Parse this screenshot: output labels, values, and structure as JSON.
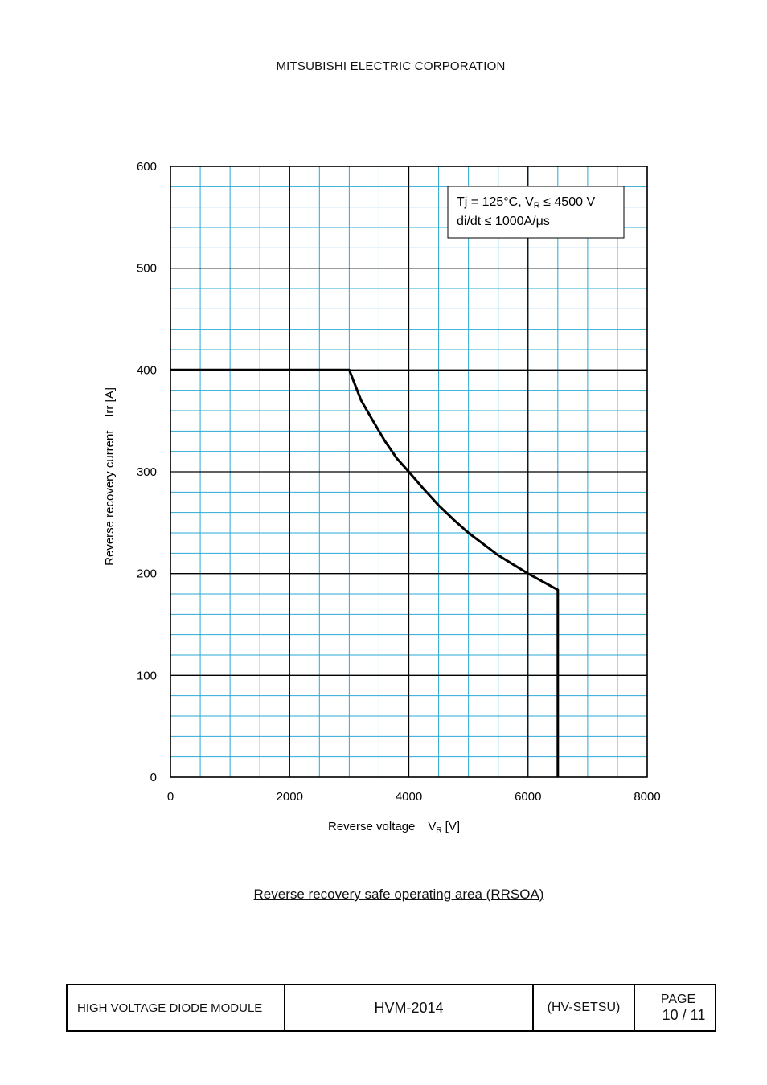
{
  "header": {
    "company": "MITSUBISHI ELECTRIC CORPORATION"
  },
  "chart_data": {
    "type": "line",
    "title": "",
    "xlabel": "Reverse voltage",
    "xlabel_symbol": "V",
    "xlabel_subscript": "R",
    "xlabel_unit": "[V]",
    "ylabel": "Reverse recovery current    Irr [A]",
    "xlim": [
      0,
      8000
    ],
    "ylim": [
      0,
      600
    ],
    "x_ticks": [
      0,
      2000,
      4000,
      6000,
      8000
    ],
    "y_ticks": [
      0,
      100,
      200,
      300,
      400,
      500,
      600
    ],
    "grid": {
      "minor_color": "#29a9d6",
      "major_color": "#000000",
      "minor_x_step": 500,
      "minor_y_step": 20
    },
    "series": [
      {
        "color": "#000000",
        "x": [
          0,
          3000,
          3200,
          3400,
          3600,
          3800,
          4000,
          4250,
          4500,
          4750,
          5000,
          5250,
          5500,
          5750,
          6000,
          6500,
          6500
        ],
        "y": [
          400,
          400,
          370,
          350,
          330,
          313,
          300,
          283,
          267,
          253,
          240,
          229,
          218,
          209,
          200,
          184,
          0
        ]
      }
    ],
    "annotation": {
      "line1_prefix": "Tj = 125°C, V",
      "line1_sub": "R",
      "line1_suffix": " ≤ 4500 V",
      "line2": "di/dt ≤ 1000A/μs",
      "placement": "top-right"
    }
  },
  "caption": "Reverse recovery safe operating area (RRSOA)",
  "footer": {
    "product": "HIGH VOLTAGE DIODE MODULE",
    "model": "HVM-2014",
    "doc_code": "(HV-SETSU)",
    "page_label": "PAGE",
    "page_number": "10 / 11"
  }
}
